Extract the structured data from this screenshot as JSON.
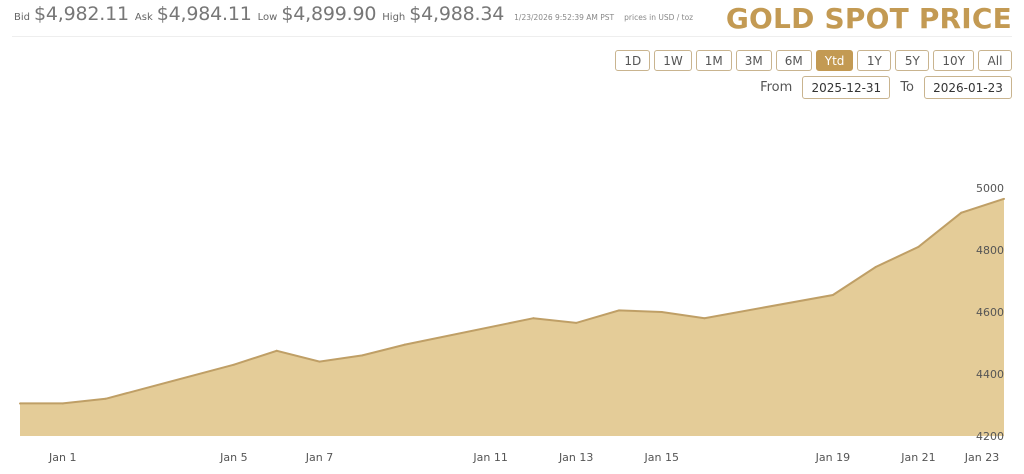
{
  "ticker": {
    "bid_label": "Bid",
    "bid": "$4,982.11",
    "ask_label": "Ask",
    "ask": "$4,984.11",
    "low_label": "Low",
    "low": "$4,899.90",
    "high_label": "High",
    "high": "$4,988.34",
    "timestamp": "1/23/2026 9:52:39 AM PST",
    "units": "prices in USD / toz"
  },
  "title": "GOLD SPOT PRICE",
  "ranges": [
    "1D",
    "1W",
    "1M",
    "3M",
    "6M",
    "Ytd",
    "1Y",
    "5Y",
    "10Y",
    "All"
  ],
  "active_range": "Ytd",
  "date_range": {
    "from_label": "From",
    "from": "2025-12-31",
    "to_label": "To",
    "to": "2026-01-23"
  },
  "colors": {
    "accent": "#c39a53",
    "area_fill": "#e4cc98",
    "area_line": "#bf9f66"
  },
  "chart_data": {
    "type": "area",
    "x": [
      "2025-12-31",
      "2026-01-01",
      "2026-01-02",
      "2026-01-05",
      "2026-01-06",
      "2026-01-07",
      "2026-01-08",
      "2026-01-09",
      "2026-01-12",
      "2026-01-13",
      "2026-01-14",
      "2026-01-15",
      "2026-01-16",
      "2026-01-19",
      "2026-01-20",
      "2026-01-21",
      "2026-01-22",
      "2026-01-23"
    ],
    "values": [
      4305,
      4305,
      4320,
      4430,
      4475,
      4440,
      4460,
      4495,
      4580,
      4565,
      4605,
      4600,
      4580,
      4655,
      4745,
      4810,
      4920,
      4965
    ],
    "x_ticks": [
      "Jan 1",
      "Jan 5",
      "Jan 7",
      "Jan 11",
      "Jan 13",
      "Jan 15",
      "Jan 19",
      "Jan 21",
      "Jan 23"
    ],
    "y_ticks": [
      4200,
      4400,
      4600,
      4800,
      5000
    ],
    "ylim": [
      4200,
      5000
    ],
    "grid": false,
    "legend": "none"
  }
}
